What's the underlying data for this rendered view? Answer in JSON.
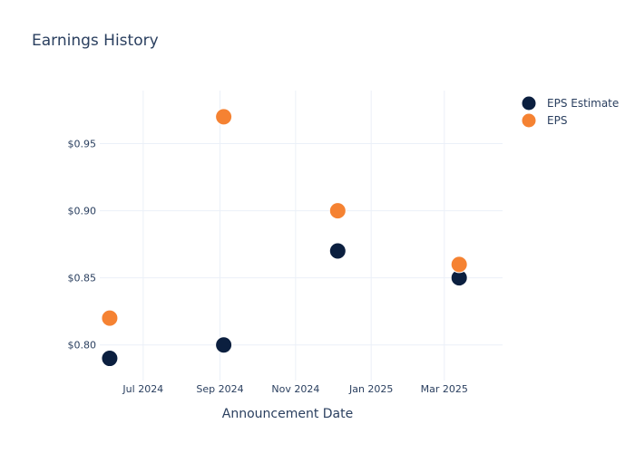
{
  "chart_data": {
    "type": "scatter",
    "title": "Earnings History",
    "xlabel": "Announcement Date",
    "ylabel": "",
    "x_ticks": [
      {
        "date": "2024-07-01",
        "label": "Jul 2024"
      },
      {
        "date": "2024-09-01",
        "label": "Sep 2024"
      },
      {
        "date": "2024-11-01",
        "label": "Nov 2024"
      },
      {
        "date": "2025-01-01",
        "label": "Jan 2025"
      },
      {
        "date": "2025-03-01",
        "label": "Mar 2025"
      }
    ],
    "y_ticks": [
      {
        "value": 0.8,
        "label": "$0.80"
      },
      {
        "value": 0.85,
        "label": "$0.85"
      },
      {
        "value": 0.9,
        "label": "$0.90"
      },
      {
        "value": 0.95,
        "label": "$0.95"
      }
    ],
    "xlim": [
      "2024-05-27",
      "2025-04-17"
    ],
    "ylim": [
      0.7735,
      0.9895
    ],
    "grid": true,
    "legend_position": "top-right",
    "series": [
      {
        "name": "EPS Estimate",
        "color": "#0b1f3f",
        "points": [
          {
            "date": "2024-06-04",
            "value": 0.79
          },
          {
            "date": "2024-09-04",
            "value": 0.8
          },
          {
            "date": "2024-12-05",
            "value": 0.87
          },
          {
            "date": "2025-03-13",
            "value": 0.85
          }
        ]
      },
      {
        "name": "EPS",
        "color": "#f58232",
        "points": [
          {
            "date": "2024-06-04",
            "value": 0.82
          },
          {
            "date": "2024-09-04",
            "value": 0.97
          },
          {
            "date": "2024-12-05",
            "value": 0.9
          },
          {
            "date": "2025-03-13",
            "value": 0.86
          }
        ]
      }
    ]
  }
}
